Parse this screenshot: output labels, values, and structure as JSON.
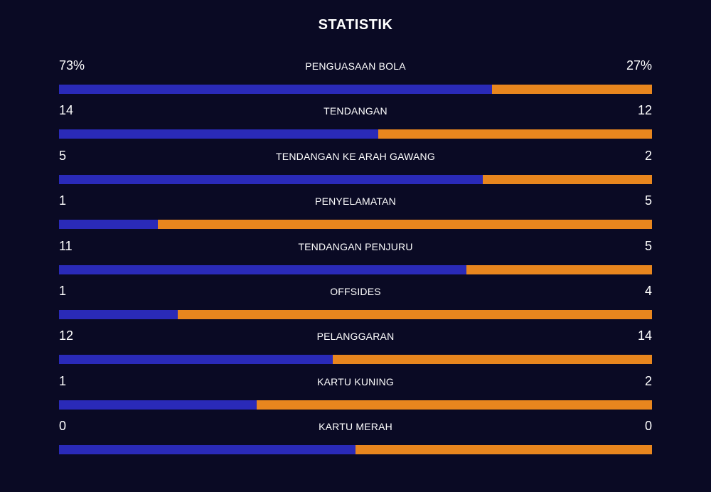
{
  "title": "STATISTIK",
  "colors": {
    "background": "#0a0a24",
    "home_bar": "#2a2ab8",
    "away_bar": "#e8861e"
  },
  "stats": [
    {
      "label": "PENGUASAAN BOLA",
      "home": "73%",
      "away": "27%",
      "home_fraction": 0.73
    },
    {
      "label": "TENDANGAN",
      "home": "14",
      "away": "12",
      "home_fraction": 0.5385
    },
    {
      "label": "TENDANGAN KE ARAH GAWANG",
      "home": "5",
      "away": "2",
      "home_fraction": 0.7143
    },
    {
      "label": "PENYELAMATAN",
      "home": "1",
      "away": "5",
      "home_fraction": 0.1667
    },
    {
      "label": "TENDANGAN PENJURU",
      "home": "11",
      "away": "5",
      "home_fraction": 0.6875
    },
    {
      "label": "OFFSIDES",
      "home": "1",
      "away": "4",
      "home_fraction": 0.2
    },
    {
      "label": "PELANGGARAN",
      "home": "12",
      "away": "14",
      "home_fraction": 0.4615
    },
    {
      "label": "KARTU KUNING",
      "home": "1",
      "away": "2",
      "home_fraction": 0.3333
    },
    {
      "label": "KARTU MERAH",
      "home": "0",
      "away": "0",
      "home_fraction": 0.5
    }
  ]
}
